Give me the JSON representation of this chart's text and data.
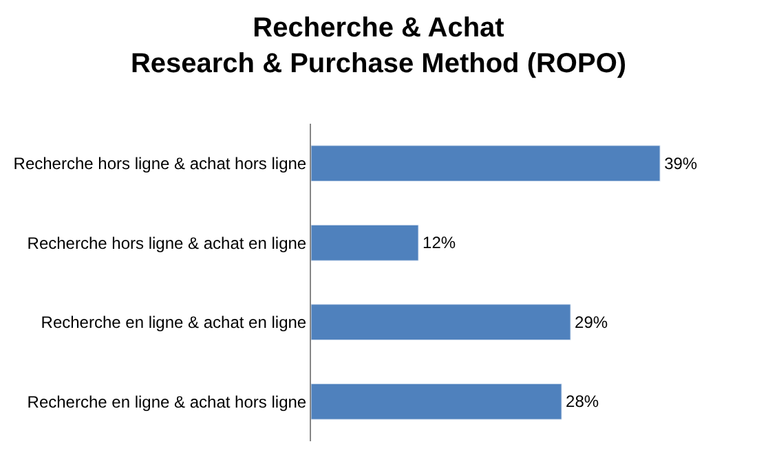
{
  "chart_data": {
    "type": "bar",
    "orientation": "horizontal",
    "title": "Recherche & Achat\nResearch & Purchase Method (ROPO)",
    "categories": [
      "Recherche hors ligne & achat hors ligne",
      "Recherche hors ligne & achat en ligne",
      "Recherche en ligne & achat en ligne",
      "Recherche en ligne & achat hors ligne"
    ],
    "values": [
      39,
      12,
      29,
      28
    ],
    "value_labels": [
      "39%",
      "12%",
      "29%",
      "28%"
    ],
    "color": "#4f81bd",
    "tick_labels": "y"
  }
}
